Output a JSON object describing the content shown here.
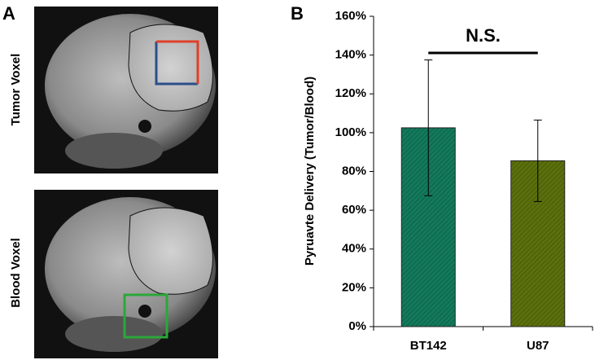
{
  "panel_a": {
    "label": "A",
    "images": [
      {
        "label": "Tumor Voxel"
      },
      {
        "label": "Blood Voxel"
      }
    ]
  },
  "chart_data": {
    "type": "bar",
    "panel_label": "B",
    "ylabel": "Pyruavte Delivery (Tumor/Blood)",
    "categories": [
      "BT142",
      "U87"
    ],
    "values": [
      102.5,
      85.5
    ],
    "errors": [
      35,
      21
    ],
    "colors": [
      "#137a5c",
      "#5b700c"
    ],
    "ylim": [
      0,
      160
    ],
    "yticks": [
      {
        "value": 0,
        "label": "0%"
      },
      {
        "value": 20,
        "label": "20%"
      },
      {
        "value": 40,
        "label": "40%"
      },
      {
        "value": 60,
        "label": "60%"
      },
      {
        "value": 80,
        "label": "80%"
      },
      {
        "value": 100,
        "label": "100%"
      },
      {
        "value": 120,
        "label": "120%"
      },
      {
        "value": 140,
        "label": "140%"
      },
      {
        "value": 160,
        "label": "160%"
      }
    ],
    "annotation": {
      "text": "N.S.",
      "from": 0,
      "to": 1
    }
  }
}
